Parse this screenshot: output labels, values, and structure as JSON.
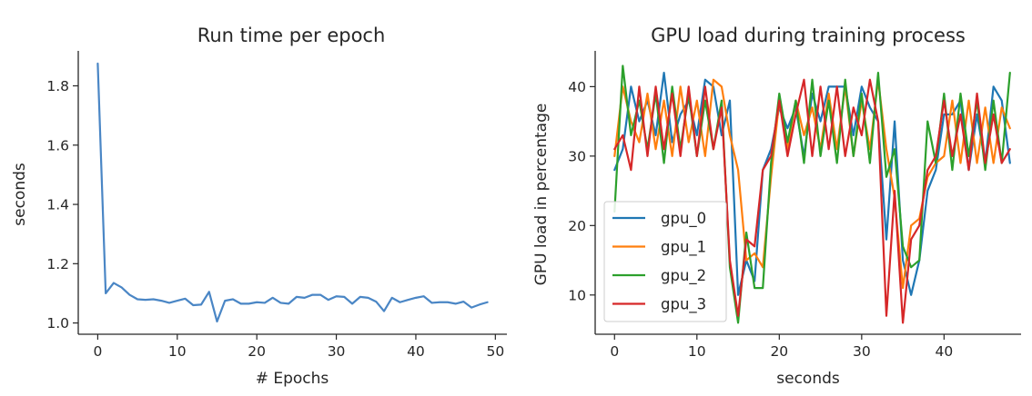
{
  "chart_data": [
    {
      "type": "line",
      "title": "Run time per epoch",
      "xlabel": "# Epochs",
      "ylabel": "seconds",
      "xlim": [
        -2.45,
        51.45
      ],
      "ylim": [
        0.962,
        1.918
      ],
      "xticks": [
        0,
        10,
        20,
        30,
        40,
        50
      ],
      "yticks": [
        1.0,
        1.2,
        1.4,
        1.6,
        1.8
      ],
      "ytick_labels": [
        "1.0",
        "1.2",
        "1.4",
        "1.6",
        "1.8"
      ],
      "grid": false,
      "series": [
        {
          "color": "#4a86c5",
          "x": [
            0,
            1,
            2,
            3,
            4,
            5,
            6,
            7,
            8,
            9,
            10,
            11,
            12,
            13,
            14,
            15,
            16,
            17,
            18,
            19,
            20,
            21,
            22,
            23,
            24,
            25,
            26,
            27,
            28,
            29,
            30,
            31,
            32,
            33,
            34,
            35,
            36,
            37,
            38,
            39,
            40,
            41,
            42,
            43,
            44,
            45,
            46,
            47,
            48,
            49
          ],
          "y": [
            1.875,
            1.1,
            1.135,
            1.12,
            1.095,
            1.08,
            1.078,
            1.08,
            1.075,
            1.068,
            1.075,
            1.082,
            1.06,
            1.062,
            1.105,
            1.005,
            1.075,
            1.08,
            1.065,
            1.065,
            1.07,
            1.068,
            1.085,
            1.068,
            1.065,
            1.088,
            1.085,
            1.095,
            1.095,
            1.078,
            1.09,
            1.088,
            1.065,
            1.088,
            1.085,
            1.072,
            1.04,
            1.085,
            1.07,
            1.078,
            1.085,
            1.09,
            1.068,
            1.07,
            1.07,
            1.065,
            1.072,
            1.052,
            1.062,
            1.07
          ]
        }
      ]
    },
    {
      "type": "line",
      "title": "GPU load during training process",
      "xlabel": "seconds",
      "ylabel": "GPU load in percentage",
      "xlim": [
        -2.35,
        49.35
      ],
      "ylim": [
        4.35,
        45.15
      ],
      "xticks": [
        0,
        10,
        20,
        30,
        40
      ],
      "yticks": [
        10,
        20,
        30,
        40
      ],
      "grid": false,
      "legend": "left",
      "series": [
        {
          "name": "gpu_0",
          "color": "#1f77b4",
          "values": [
            28,
            31,
            40,
            35,
            38,
            33,
            42,
            32,
            36,
            38,
            33,
            41,
            40,
            33,
            38,
            10,
            15,
            12,
            28,
            31,
            37,
            34,
            37,
            30,
            39,
            35,
            40,
            40,
            40,
            33,
            40,
            37,
            35,
            18,
            35,
            15,
            10,
            15,
            25,
            28,
            36,
            36,
            38,
            28,
            36,
            29,
            40,
            38,
            29
          ]
        },
        {
          "name": "gpu_1",
          "color": "#ff7f0e",
          "values": [
            30,
            40,
            35,
            32,
            39,
            31,
            38,
            30,
            40,
            32,
            38,
            30,
            41,
            40,
            33,
            28,
            15,
            16,
            14,
            27,
            38,
            31,
            38,
            33,
            37,
            31,
            39,
            31,
            40,
            30,
            38,
            31,
            41,
            31,
            24,
            11,
            20,
            21,
            27,
            29,
            30,
            38,
            29,
            38,
            29,
            37,
            29,
            37,
            34
          ]
        },
        {
          "name": "gpu_2",
          "color": "#2ca02c",
          "values": [
            22,
            43,
            33,
            38,
            31,
            39,
            29,
            40,
            31,
            39,
            30,
            38,
            31,
            38,
            14,
            6,
            19,
            11,
            11,
            29,
            39,
            32,
            38,
            29,
            41,
            30,
            38,
            29,
            41,
            30,
            39,
            29,
            42,
            27,
            31,
            17,
            14,
            15,
            35,
            29,
            39,
            28,
            39,
            30,
            38,
            28,
            38,
            29,
            42
          ]
        },
        {
          "name": "gpu_3",
          "color": "#d62728",
          "values": [
            31,
            33,
            28,
            40,
            30,
            40,
            31,
            39,
            30,
            40,
            30,
            40,
            31,
            37,
            15,
            7,
            18,
            17,
            28,
            30,
            38,
            30,
            36,
            41,
            30,
            40,
            31,
            40,
            30,
            37,
            33,
            41,
            35,
            7,
            25,
            6,
            18,
            20,
            28,
            30,
            38,
            30,
            36,
            28,
            39,
            29,
            36,
            29,
            31
          ]
        }
      ]
    }
  ]
}
